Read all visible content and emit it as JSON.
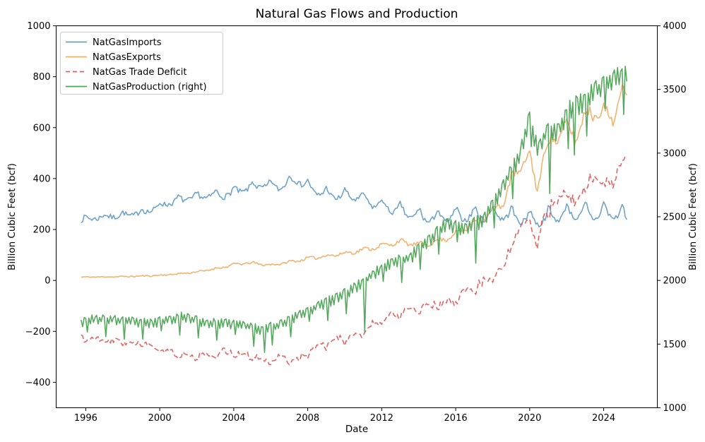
{
  "figure": {
    "title": "Natural Gas Flows and Production",
    "xlabel": "Date",
    "ylabel_left": "Billion Cubic Feet (bcf)",
    "ylabel_right": "Billion Cubic Feet (bcf)"
  },
  "legend": {
    "items": [
      {
        "label": "NatGasImports",
        "color": "#5f9ac4",
        "dash": "solid"
      },
      {
        "label": "NatGasExports",
        "color": "#f0ab61",
        "dash": "solid"
      },
      {
        "label": "NatGas Trade Deficit",
        "color": "#dd5454",
        "dash": "dashed"
      },
      {
        "label": "NatGasProduction (right)",
        "color": "#44a04c",
        "dash": "solid"
      }
    ]
  },
  "chart_data": {
    "type": "line",
    "title": "Natural Gas Flows and Production",
    "xlabel": "Date",
    "ylabel_left": "Billion Cubic Feet (bcf)",
    "ylabel_right": "Billion Cubic Feet (bcf)",
    "x_unit": "decimal year, monthly samples",
    "sample_range": {
      "start": 1995.75,
      "end": 2025.27,
      "step_years": 0.08333
    },
    "xlim": [
      1994.4,
      2026.9
    ],
    "ylim_left": [
      -500,
      1000
    ],
    "ylim_right": [
      1000,
      4000
    ],
    "x_ticks": [
      1996,
      2000,
      2004,
      2008,
      2012,
      2016,
      2020,
      2024
    ],
    "y_ticks_left": [
      1000,
      800,
      600,
      400,
      200,
      0,
      -200,
      -400
    ],
    "y_ticks_right": [
      4000,
      3500,
      3000,
      2500,
      2000,
      1500,
      1000
    ],
    "grid": false,
    "legend_position": "upper left",
    "series": [
      {
        "name": "NatGasImports",
        "axis": "left",
        "color": "#5f9ac4",
        "style": "solid",
        "model": "trend_winter_seasonal",
        "seed": 7,
        "noise_abs": 11,
        "seasonal": {
          "base_amp": 10,
          "amp_growth_per_year": 1.3,
          "ref_year": 1996
        },
        "anchor_points": [
          [
            1995.75,
            238
          ],
          [
            1996.5,
            245
          ],
          [
            1997.5,
            252
          ],
          [
            1998.5,
            258
          ],
          [
            1999.5,
            275
          ],
          [
            2000.5,
            305
          ],
          [
            2001.5,
            320
          ],
          [
            2002.5,
            330
          ],
          [
            2003.5,
            335
          ],
          [
            2004.5,
            355
          ],
          [
            2005.5,
            372
          ],
          [
            2006.5,
            365
          ],
          [
            2007.3,
            398
          ],
          [
            2008.5,
            345
          ],
          [
            2009.5,
            330
          ],
          [
            2010.5,
            328
          ],
          [
            2011.5,
            300
          ],
          [
            2012.5,
            280
          ],
          [
            2013.5,
            258
          ],
          [
            2014.5,
            240
          ],
          [
            2015.5,
            245
          ],
          [
            2016.5,
            250
          ],
          [
            2017.5,
            252
          ],
          [
            2018.5,
            255
          ],
          [
            2019.5,
            242
          ],
          [
            2020.5,
            232
          ],
          [
            2021.5,
            252
          ],
          [
            2022.5,
            260
          ],
          [
            2023.5,
            256
          ],
          [
            2024.5,
            262
          ],
          [
            2025.25,
            240
          ]
        ]
      },
      {
        "name": "NatGasExports",
        "axis": "left",
        "color": "#f0ab61",
        "style": "solid",
        "model": "trend_rel_seasonal",
        "seed": 11,
        "noise_rel": 0.035,
        "noise_abs": 2,
        "seasonal_rel": 0.045,
        "anchor_points": [
          [
            1995.75,
            13
          ],
          [
            1997,
            14
          ],
          [
            1998,
            15
          ],
          [
            1999,
            17
          ],
          [
            2000,
            20
          ],
          [
            2001,
            26
          ],
          [
            2002,
            33
          ],
          [
            2003,
            46
          ],
          [
            2004.3,
            66
          ],
          [
            2005,
            68
          ],
          [
            2006,
            60
          ],
          [
            2007,
            72
          ],
          [
            2008,
            86
          ],
          [
            2009,
            96
          ],
          [
            2010,
            106
          ],
          [
            2011,
            120
          ],
          [
            2012,
            136
          ],
          [
            2013,
            152
          ],
          [
            2014,
            140
          ],
          [
            2015,
            152
          ],
          [
            2016,
            182
          ],
          [
            2017,
            228
          ],
          [
            2018,
            270
          ],
          [
            2018.5,
            300
          ],
          [
            2019,
            390
          ],
          [
            2019.95,
            495
          ],
          [
            2020.4,
            358
          ],
          [
            2020.8,
            510
          ],
          [
            2021.5,
            570
          ],
          [
            2021.9,
            600
          ],
          [
            2022.45,
            565
          ],
          [
            2022.9,
            630
          ],
          [
            2023.6,
            680
          ],
          [
            2024.1,
            640
          ],
          [
            2024.6,
            665
          ],
          [
            2025.25,
            742
          ]
        ]
      },
      {
        "name": "NatGas Trade Deficit",
        "axis": "left",
        "color": "#dd5454",
        "style": "dashed",
        "model": "difference",
        "formula": "NatGasExports - NatGasImports",
        "minuend": "NatGasExports",
        "subtrahend": "NatGasImports",
        "key_values": [
          [
            1996,
            -230
          ],
          [
            2001,
            -300
          ],
          [
            2007.5,
            -355
          ],
          [
            2010,
            -225
          ],
          [
            2012,
            -150
          ],
          [
            2014,
            -105
          ],
          [
            2016,
            -70
          ],
          [
            2017.3,
            0
          ],
          [
            2018,
            60
          ],
          [
            2019,
            130
          ],
          [
            2020,
            260
          ],
          [
            2021,
            330
          ],
          [
            2022,
            350
          ],
          [
            2023,
            400
          ],
          [
            2024,
            390
          ],
          [
            2025.2,
            500
          ]
        ]
      },
      {
        "name": "NatGasProduction (right)",
        "axis": "right",
        "color": "#44a04c",
        "style": "solid",
        "model": "trend_monthdays",
        "seed": 23,
        "noise_rel": 0.008,
        "month_length_effect": true,
        "events": [
          [
            2005.667,
            -170
          ],
          [
            2011.083,
            -240
          ],
          [
            2017.083,
            -120
          ],
          [
            2021.083,
            -250
          ],
          [
            2022.417,
            -330
          ]
        ],
        "anchor_points": [
          [
            1995.75,
            1670
          ],
          [
            1996.5,
            1690
          ],
          [
            1997.5,
            1685
          ],
          [
            1998.5,
            1670
          ],
          [
            1999.5,
            1655
          ],
          [
            2000.5,
            1690
          ],
          [
            2001.3,
            1710
          ],
          [
            2002.5,
            1660
          ],
          [
            2003.5,
            1655
          ],
          [
            2004.5,
            1645
          ],
          [
            2005.4,
            1610
          ],
          [
            2006.3,
            1640
          ],
          [
            2007.5,
            1720
          ],
          [
            2008.5,
            1790
          ],
          [
            2009.5,
            1850
          ],
          [
            2010.5,
            1930
          ],
          [
            2011.5,
            2040
          ],
          [
            2012.5,
            2130
          ],
          [
            2013.5,
            2170
          ],
          [
            2014.5,
            2310
          ],
          [
            2015.5,
            2430
          ],
          [
            2016.5,
            2400
          ],
          [
            2017.5,
            2470
          ],
          [
            2018.5,
            2720
          ],
          [
            2019.5,
            2980
          ],
          [
            2019.95,
            3270
          ],
          [
            2020.45,
            3000
          ],
          [
            2020.9,
            3180
          ],
          [
            2021.5,
            3160
          ],
          [
            2022.2,
            3340
          ],
          [
            2022.9,
            3390
          ],
          [
            2023.5,
            3470
          ],
          [
            2024.5,
            3570
          ],
          [
            2025.25,
            3615
          ]
        ]
      }
    ]
  },
  "colors": {
    "spine": "#000000",
    "legend_border": "#cccccc",
    "background": "#ffffff"
  }
}
